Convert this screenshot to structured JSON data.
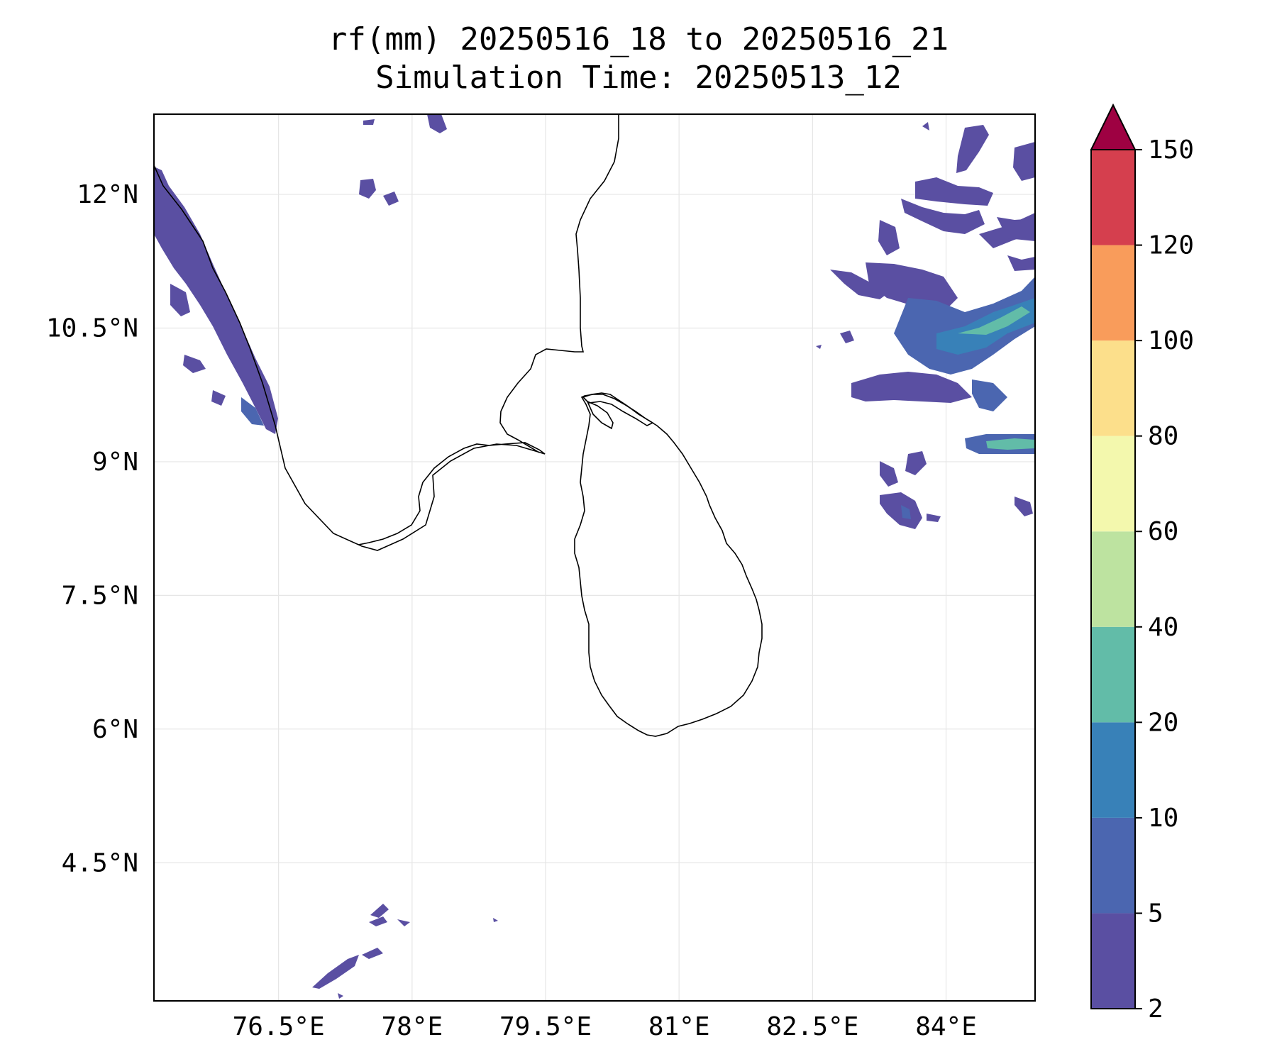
{
  "title": {
    "line1": "rf(mm) 20250516_18 to 20250516_21",
    "line2": "Simulation Time: 20250513_12"
  },
  "map": {
    "lon_range": [
      75.1,
      85.0
    ],
    "lat_range": [
      2.95,
      12.9
    ],
    "x_ticks": [
      {
        "value": 76.5,
        "label": "76.5°E"
      },
      {
        "value": 78,
        "label": "78°E"
      },
      {
        "value": 79.5,
        "label": "79.5°E"
      },
      {
        "value": 81,
        "label": "81°E"
      },
      {
        "value": 82.5,
        "label": "82.5°E"
      },
      {
        "value": 84,
        "label": "84°E"
      }
    ],
    "y_ticks": [
      {
        "value": 12,
        "label": "12°N"
      },
      {
        "value": 10.5,
        "label": "10.5°N"
      },
      {
        "value": 9,
        "label": "9°N"
      },
      {
        "value": 7.5,
        "label": "7.5°N"
      },
      {
        "value": 6,
        "label": "6°N"
      },
      {
        "value": 4.5,
        "label": "4.5°N"
      }
    ],
    "gridlines": true
  },
  "colorbar": {
    "extend": "max",
    "levels": [
      2,
      5,
      10,
      20,
      40,
      60,
      80,
      100,
      120,
      150
    ],
    "tick_labels": [
      "2",
      "5",
      "10",
      "20",
      "40",
      "60",
      "80",
      "100",
      "120",
      "150"
    ],
    "colors": [
      "#5a4fa2",
      "#4b66b0",
      "#3881b8",
      "#62bca8",
      "#bde3a0",
      "#f3f8ad",
      "#fcdf8b",
      "#f99c5b",
      "#d53f4e"
    ],
    "over_color": "#9e0142"
  }
}
